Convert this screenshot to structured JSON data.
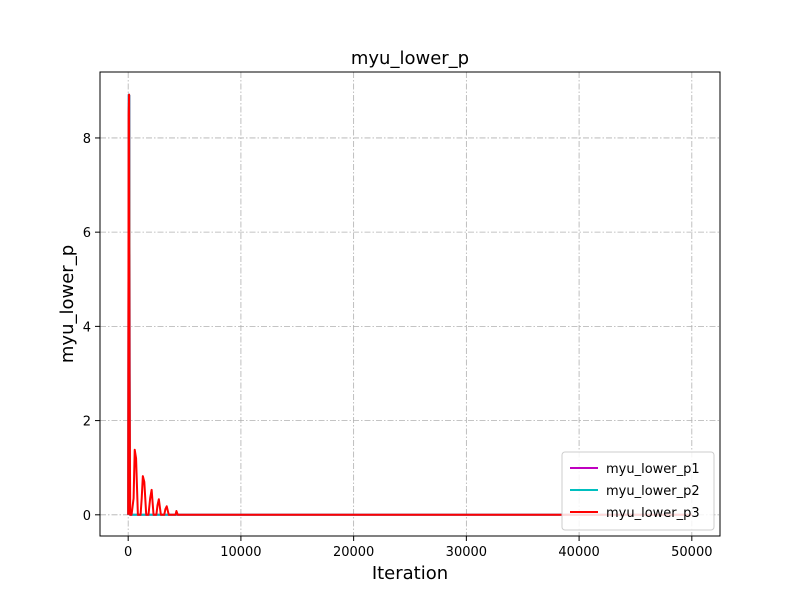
{
  "chart_data": {
    "type": "line",
    "title": "myu_lower_p",
    "xlabel": "Iteration",
    "ylabel": "myu_lower_p",
    "xlim": [
      -2500,
      52500
    ],
    "ylim": [
      -0.45,
      9.4
    ],
    "xticks": [
      0,
      10000,
      20000,
      30000,
      40000,
      50000
    ],
    "yticks": [
      0,
      2,
      4,
      6,
      8
    ],
    "grid": true,
    "legend_position": "lower-right",
    "series": [
      {
        "name": "myu_lower_p1",
        "color": "#bf00bf",
        "x": [
          0,
          50,
          100,
          150,
          200,
          50000
        ],
        "y": [
          0,
          8.92,
          8.9,
          0,
          0,
          0
        ]
      },
      {
        "name": "myu_lower_p2",
        "color": "#00bfbf",
        "x": [
          0,
          50,
          100,
          150,
          200,
          50000
        ],
        "y": [
          0,
          8.92,
          8.9,
          0,
          0,
          0
        ]
      },
      {
        "name": "myu_lower_p3",
        "color": "#ff0000",
        "x": [
          0,
          40,
          80,
          120,
          180,
          300,
          480,
          580,
          700,
          860,
          1100,
          1200,
          1300,
          1430,
          1600,
          1800,
          1950,
          2080,
          2250,
          2500,
          2600,
          2720,
          2900,
          3200,
          3300,
          3420,
          3600,
          4200,
          4280,
          4400,
          4600,
          50000
        ],
        "y": [
          0,
          8.5,
          8.92,
          3.0,
          0,
          0,
          0.35,
          1.38,
          1.2,
          0,
          0,
          0.35,
          0.82,
          0.7,
          0,
          0,
          0.35,
          0.53,
          0,
          0,
          0.2,
          0.33,
          0,
          0,
          0.12,
          0.18,
          0,
          0,
          0.08,
          0,
          0,
          0
        ]
      }
    ]
  }
}
